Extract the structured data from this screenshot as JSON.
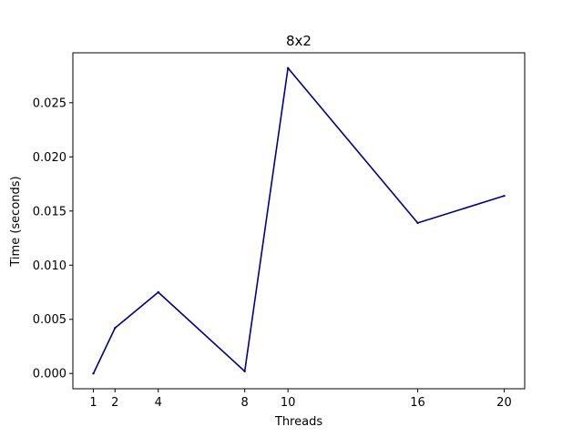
{
  "chart_data": {
    "type": "line",
    "title": "8x2",
    "xlabel": "Threads",
    "ylabel": "Time (seconds)",
    "x": [
      1,
      2,
      4,
      8,
      10,
      16,
      20
    ],
    "series": [
      {
        "color": "#00008b",
        "values": [
          0.0,
          0.0042,
          0.0075,
          0.0002,
          0.0282,
          0.0139,
          0.0164
        ]
      }
    ],
    "xticks": [
      1,
      2,
      4,
      8,
      10,
      16,
      20
    ],
    "xtick_labels": [
      "1",
      "2",
      "4",
      "8",
      "10",
      "16",
      "20"
    ],
    "yticks": [
      0,
      0.005,
      0.01,
      0.015,
      0.02,
      0.025
    ],
    "ytick_labels": [
      "0.000",
      "0.005",
      "0.010",
      "0.015",
      "0.020",
      "0.025"
    ],
    "xlim": [
      0.05,
      20.95
    ],
    "ylim": [
      -0.00141,
      0.02961
    ],
    "grid": false,
    "legend": "none"
  }
}
